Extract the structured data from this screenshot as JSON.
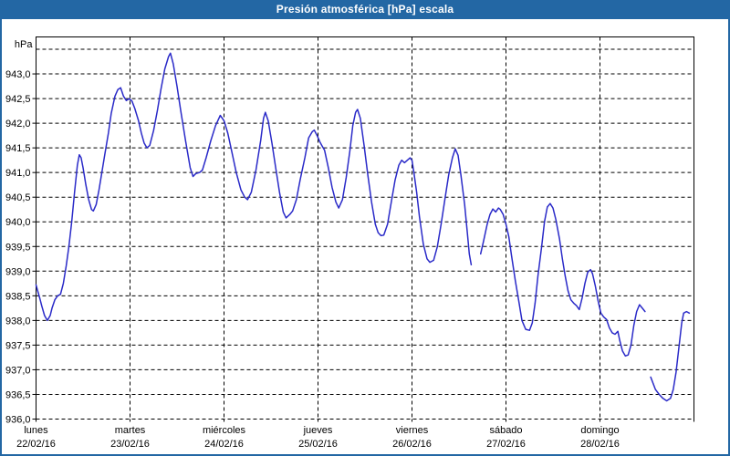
{
  "window": {
    "title": "Presión atmosférica [hPa] escala",
    "colors": {
      "title_bar": "#2367a4",
      "title_text": "#ffffff",
      "border": "#2367a4",
      "background": "#ffffff"
    }
  },
  "chart_data": {
    "type": "line",
    "title": "Presión atmosférica [hPa] escala",
    "ylabel": "hPa",
    "y_unit_label": "hPa",
    "ylim": [
      936.0,
      943.75
    ],
    "y_tick_step": 0.5,
    "y_tick_values": [
      943.0,
      942.5,
      942.0,
      941.5,
      941.0,
      940.5,
      940.0,
      939.5,
      939.0,
      938.5,
      938.0,
      937.5,
      937.0,
      936.5,
      936.0
    ],
    "y_top_unlabeled_gridline": 943.5,
    "decimal_separator": ",",
    "grid": true,
    "grid_style": "dashed",
    "grid_color": "#000000",
    "axis_color": "#000000",
    "text_color": "#000000",
    "line_color": "#2a2ac8",
    "legend": "none",
    "x_days_total": 7,
    "x_categories": [
      {
        "name": "lunes",
        "date": "22/02/16"
      },
      {
        "name": "martes",
        "date": "23/02/16"
      },
      {
        "name": "miércoles",
        "date": "24/02/16"
      },
      {
        "name": "jueves",
        "date": "25/02/16"
      },
      {
        "name": "viernes",
        "date": "26/02/16"
      },
      {
        "name": "sábado",
        "date": "27/02/16"
      },
      {
        "name": "domingo",
        "date": "28/02/16"
      }
    ],
    "series": [
      {
        "name": "Presión atmosférica",
        "unit": "hPa",
        "x_unit": "days",
        "segments": [
          [
            [
              0.0,
              938.72
            ],
            [
              0.02,
              938.58
            ],
            [
              0.04,
              938.45
            ],
            [
              0.06,
              938.3
            ],
            [
              0.09,
              938.1
            ],
            [
              0.12,
              938.0
            ],
            [
              0.15,
              938.1
            ],
            [
              0.17,
              938.25
            ],
            [
              0.2,
              938.42
            ],
            [
              0.23,
              938.5
            ],
            [
              0.26,
              938.53
            ],
            [
              0.29,
              938.75
            ],
            [
              0.32,
              939.1
            ],
            [
              0.35,
              939.5
            ],
            [
              0.38,
              940.0
            ],
            [
              0.41,
              940.6
            ],
            [
              0.44,
              941.15
            ],
            [
              0.46,
              941.36
            ],
            [
              0.48,
              941.3
            ],
            [
              0.5,
              941.1
            ],
            [
              0.53,
              940.75
            ],
            [
              0.56,
              940.45
            ],
            [
              0.59,
              940.25
            ],
            [
              0.61,
              940.22
            ],
            [
              0.64,
              940.35
            ],
            [
              0.67,
              940.65
            ],
            [
              0.7,
              941.0
            ],
            [
              0.73,
              941.35
            ],
            [
              0.77,
              941.8
            ],
            [
              0.8,
              942.2
            ],
            [
              0.84,
              942.55
            ],
            [
              0.87,
              942.68
            ],
            [
              0.9,
              942.72
            ],
            [
              0.93,
              942.55
            ],
            [
              0.96,
              942.46
            ],
            [
              0.99,
              942.5
            ],
            [
              1.02,
              942.45
            ],
            [
              1.05,
              942.3
            ],
            [
              1.09,
              942.05
            ],
            [
              1.12,
              941.8
            ],
            [
              1.15,
              941.6
            ],
            [
              1.18,
              941.5
            ],
            [
              1.21,
              941.55
            ],
            [
              1.25,
              941.85
            ],
            [
              1.29,
              942.25
            ],
            [
              1.33,
              942.7
            ],
            [
              1.37,
              943.1
            ],
            [
              1.41,
              943.35
            ],
            [
              1.43,
              943.42
            ],
            [
              1.46,
              943.2
            ],
            [
              1.5,
              942.75
            ],
            [
              1.54,
              942.25
            ],
            [
              1.59,
              941.65
            ],
            [
              1.64,
              941.1
            ],
            [
              1.67,
              940.92
            ],
            [
              1.7,
              940.98
            ],
            [
              1.74,
              941.0
            ],
            [
              1.77,
              941.05
            ],
            [
              1.81,
              941.3
            ],
            [
              1.86,
              941.65
            ],
            [
              1.91,
              941.95
            ],
            [
              1.96,
              942.16
            ],
            [
              2.0,
              942.05
            ],
            [
              2.04,
              941.8
            ],
            [
              2.08,
              941.45
            ],
            [
              2.13,
              941.0
            ],
            [
              2.18,
              940.65
            ],
            [
              2.22,
              940.5
            ],
            [
              2.25,
              940.45
            ],
            [
              2.29,
              940.6
            ],
            [
              2.34,
              941.05
            ],
            [
              2.39,
              941.65
            ],
            [
              2.42,
              942.1
            ],
            [
              2.44,
              942.22
            ],
            [
              2.47,
              942.05
            ],
            [
              2.51,
              941.6
            ],
            [
              2.55,
              941.1
            ],
            [
              2.59,
              940.6
            ],
            [
              2.63,
              940.2
            ],
            [
              2.66,
              940.08
            ],
            [
              2.7,
              940.15
            ],
            [
              2.73,
              940.22
            ],
            [
              2.77,
              940.45
            ],
            [
              2.81,
              940.85
            ],
            [
              2.86,
              941.3
            ],
            [
              2.9,
              941.7
            ],
            [
              2.94,
              941.83
            ],
            [
              2.96,
              941.86
            ],
            [
              2.99,
              941.75
            ],
            [
              3.02,
              941.62
            ],
            [
              3.04,
              941.55
            ],
            [
              3.07,
              941.45
            ],
            [
              3.11,
              941.1
            ],
            [
              3.15,
              940.7
            ],
            [
              3.19,
              940.4
            ],
            [
              3.22,
              940.28
            ],
            [
              3.26,
              940.45
            ],
            [
              3.3,
              940.9
            ],
            [
              3.34,
              941.45
            ],
            [
              3.37,
              941.95
            ],
            [
              3.4,
              942.22
            ],
            [
              3.42,
              942.28
            ],
            [
              3.45,
              942.1
            ],
            [
              3.49,
              941.55
            ],
            [
              3.53,
              940.95
            ],
            [
              3.57,
              940.4
            ],
            [
              3.61,
              939.95
            ],
            [
              3.64,
              939.78
            ],
            [
              3.67,
              939.72
            ],
            [
              3.7,
              939.73
            ],
            [
              3.74,
              939.95
            ],
            [
              3.78,
              940.4
            ],
            [
              3.82,
              940.85
            ],
            [
              3.86,
              941.15
            ],
            [
              3.89,
              941.25
            ],
            [
              3.92,
              941.2
            ],
            [
              3.95,
              941.25
            ],
            [
              3.98,
              941.3
            ],
            [
              4.0,
              941.25
            ],
            [
              4.02,
              941.0
            ],
            [
              4.05,
              940.6
            ],
            [
              4.08,
              940.1
            ],
            [
              4.12,
              939.55
            ],
            [
              4.16,
              939.25
            ],
            [
              4.19,
              939.18
            ],
            [
              4.23,
              939.22
            ],
            [
              4.27,
              939.5
            ],
            [
              4.31,
              939.95
            ],
            [
              4.35,
              940.45
            ],
            [
              4.39,
              940.95
            ],
            [
              4.43,
              941.3
            ],
            [
              4.46,
              941.48
            ],
            [
              4.49,
              941.35
            ],
            [
              4.52,
              940.95
            ],
            [
              4.56,
              940.35
            ],
            [
              4.59,
              939.75
            ],
            [
              4.61,
              939.35
            ],
            [
              4.63,
              939.13
            ]
          ],
          [
            [
              4.73,
              939.35
            ],
            [
              4.76,
              939.6
            ],
            [
              4.8,
              939.95
            ],
            [
              4.83,
              940.15
            ],
            [
              4.86,
              940.26
            ],
            [
              4.89,
              940.2
            ],
            [
              4.92,
              940.28
            ],
            [
              4.94,
              940.25
            ],
            [
              4.97,
              940.15
            ],
            [
              5.0,
              939.95
            ],
            [
              5.03,
              939.7
            ],
            [
              5.06,
              939.3
            ],
            [
              5.1,
              938.8
            ],
            [
              5.14,
              938.35
            ],
            [
              5.17,
              938.0
            ],
            [
              5.21,
              937.82
            ],
            [
              5.25,
              937.8
            ],
            [
              5.28,
              937.95
            ],
            [
              5.31,
              938.35
            ],
            [
              5.34,
              938.9
            ],
            [
              5.38,
              939.5
            ],
            [
              5.41,
              940.0
            ],
            [
              5.44,
              940.3
            ],
            [
              5.47,
              940.37
            ],
            [
              5.5,
              940.28
            ],
            [
              5.53,
              940.05
            ],
            [
              5.57,
              939.65
            ],
            [
              5.6,
              939.25
            ],
            [
              5.63,
              938.9
            ],
            [
              5.66,
              938.6
            ],
            [
              5.69,
              938.42
            ],
            [
              5.72,
              938.35
            ],
            [
              5.75,
              938.3
            ],
            [
              5.78,
              938.22
            ],
            [
              5.81,
              938.45
            ],
            [
              5.84,
              938.75
            ],
            [
              5.87,
              938.98
            ],
            [
              5.9,
              939.03
            ],
            [
              5.92,
              938.95
            ],
            [
              5.95,
              938.7
            ],
            [
              5.98,
              938.4
            ],
            [
              6.01,
              938.15
            ],
            [
              6.04,
              938.07
            ],
            [
              6.07,
              938.02
            ],
            [
              6.1,
              937.85
            ],
            [
              6.13,
              937.75
            ],
            [
              6.16,
              937.72
            ],
            [
              6.19,
              937.78
            ],
            [
              6.21,
              937.6
            ],
            [
              6.24,
              937.38
            ],
            [
              6.27,
              937.28
            ],
            [
              6.3,
              937.3
            ],
            [
              6.33,
              937.5
            ],
            [
              6.36,
              937.9
            ],
            [
              6.39,
              938.18
            ],
            [
              6.42,
              938.32
            ],
            [
              6.45,
              938.25
            ],
            [
              6.48,
              938.18
            ]
          ],
          [
            [
              6.54,
              936.85
            ],
            [
              6.56,
              936.75
            ],
            [
              6.59,
              936.6
            ],
            [
              6.63,
              936.5
            ],
            [
              6.67,
              936.42
            ],
            [
              6.71,
              936.37
            ],
            [
              6.75,
              936.42
            ],
            [
              6.78,
              936.6
            ],
            [
              6.81,
              936.95
            ],
            [
              6.84,
              937.45
            ],
            [
              6.87,
              937.95
            ],
            [
              6.89,
              938.15
            ],
            [
              6.92,
              938.18
            ],
            [
              6.95,
              938.15
            ]
          ]
        ]
      }
    ]
  }
}
